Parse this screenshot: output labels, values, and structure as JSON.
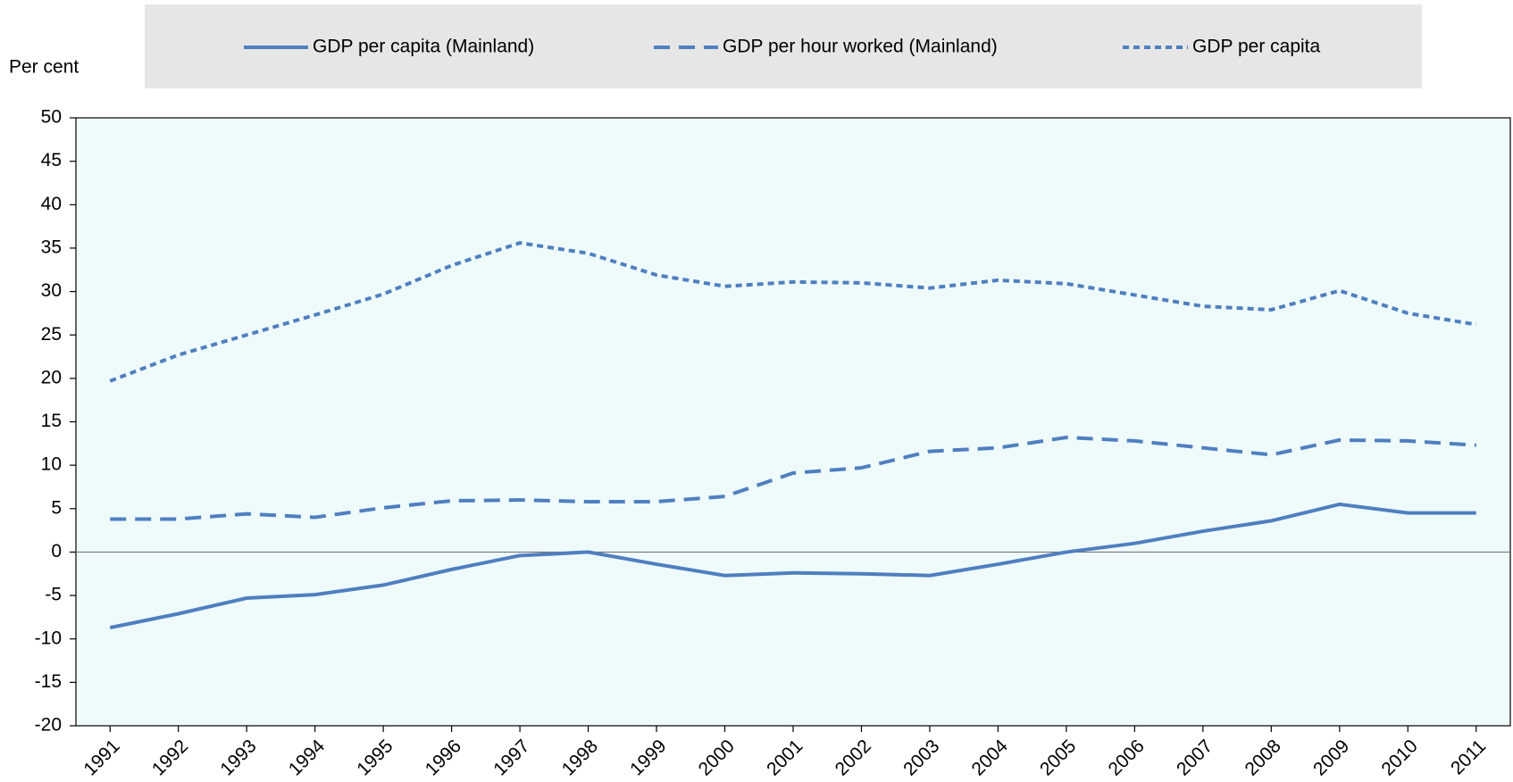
{
  "chart_data": {
    "type": "line",
    "y_label": "Per cent",
    "categories": [
      "1991",
      "1992",
      "1993",
      "1994",
      "1995",
      "1996",
      "1997",
      "1998",
      "1999",
      "2000",
      "2001",
      "2002",
      "2003",
      "2004",
      "2005",
      "2006",
      "2007",
      "2008",
      "2009",
      "2010",
      "2011"
    ],
    "series": [
      {
        "name": "GDP per capita (Mainland)",
        "color": "#4f7fc0",
        "dash": "solid",
        "values": [
          -8.7,
          -7.1,
          -5.3,
          -4.9,
          -3.8,
          -2.0,
          -0.4,
          0.0,
          -1.4,
          -2.7,
          -2.4,
          -2.5,
          -2.7,
          -1.4,
          0.0,
          1.0,
          2.4,
          3.6,
          5.5,
          4.5,
          4.5
        ]
      },
      {
        "name": "GDP per hour worked (Mainland)",
        "color": "#4f7fc0",
        "dash": "dashed",
        "values": [
          3.8,
          3.8,
          4.4,
          4.0,
          5.1,
          5.9,
          6.0,
          5.8,
          5.8,
          6.4,
          9.1,
          9.7,
          11.6,
          12.0,
          13.2,
          12.8,
          12.0,
          11.2,
          12.9,
          12.8,
          12.3
        ]
      },
      {
        "name": "GDP per capita",
        "color": "#4f7fc0",
        "dash": "dotted",
        "values": [
          19.7,
          22.7,
          25.0,
          27.3,
          29.7,
          33.0,
          35.6,
          34.4,
          31.9,
          30.6,
          31.1,
          31.0,
          30.4,
          31.3,
          30.9,
          29.6,
          28.3,
          27.9,
          30.1,
          27.5,
          26.2
        ]
      }
    ],
    "ylim": [
      -20,
      50
    ],
    "yticks": [
      -20,
      -15,
      -10,
      -5,
      0,
      5,
      10,
      15,
      20,
      25,
      30,
      35,
      40,
      45,
      50
    ],
    "plot_background": "#effbfb",
    "legend_background": "#e6e6e6"
  }
}
